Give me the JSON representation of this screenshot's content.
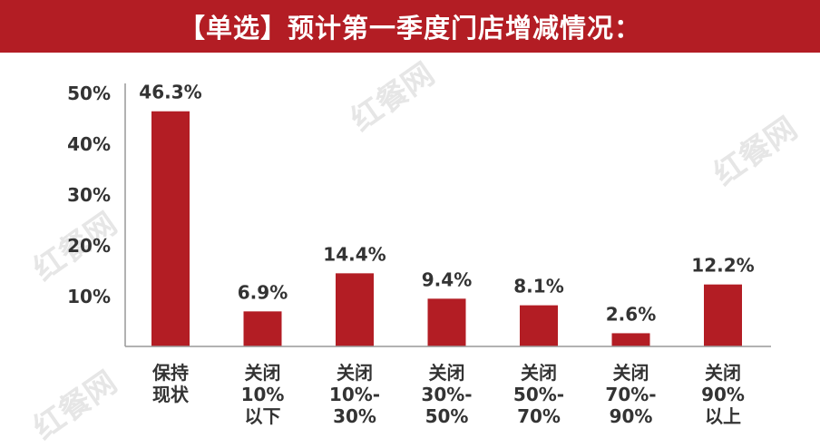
{
  "header": {
    "title": "【单选】预计第一季度门店增减情况："
  },
  "watermarks": [
    "红餐网",
    "红餐网",
    "红餐网",
    "红餐网"
  ],
  "chart_data": {
    "type": "bar",
    "title": "【单选】预计第一季度门店增减情况：",
    "categories": [
      [
        "保持",
        "现状"
      ],
      [
        "关闭",
        "10%",
        "以下"
      ],
      [
        "关闭",
        "10%-",
        "30%"
      ],
      [
        "关闭",
        "30%-",
        "50%"
      ],
      [
        "关闭",
        "50%-",
        "70%"
      ],
      [
        "关闭",
        "70%-",
        "90%"
      ],
      [
        "关闭",
        "90%",
        "以上"
      ]
    ],
    "values": [
      46.3,
      6.9,
      14.4,
      9.4,
      8.1,
      2.6,
      12.2
    ],
    "data_labels": [
      "46.3%",
      "6.9%",
      "14.4%",
      "9.4%",
      "8.1%",
      "2.6%",
      "12.2%"
    ],
    "ylim": [
      0,
      50
    ],
    "yticks": [
      10,
      20,
      30,
      40,
      50
    ],
    "ytick_labels": [
      "10%",
      "20%",
      "30%",
      "40%",
      "50%"
    ],
    "xlabel": "",
    "ylabel": "",
    "grid": false,
    "colors": {
      "bar": "#b31d24",
      "axis": "#999999",
      "text": "#333333"
    }
  }
}
